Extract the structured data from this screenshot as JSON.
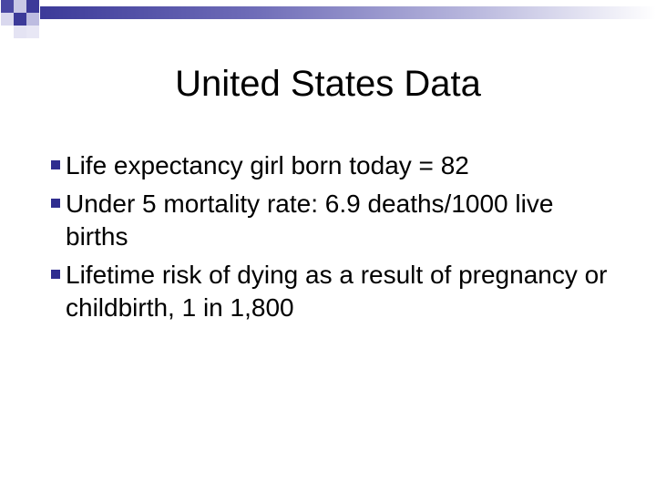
{
  "slide": {
    "title": "United States Data",
    "bullets": [
      {
        "text": "Life expectancy girl born today = 82"
      },
      {
        "text": "Under 5 mortality rate: 6.9 deaths/1000 live births"
      },
      {
        "text": "Lifetime risk of dying as a result of pregnancy or childbirth, 1 in 1,800"
      }
    ]
  },
  "theme": {
    "accent_color": "#3c3a99",
    "bullet_icon": "square-bullet"
  }
}
